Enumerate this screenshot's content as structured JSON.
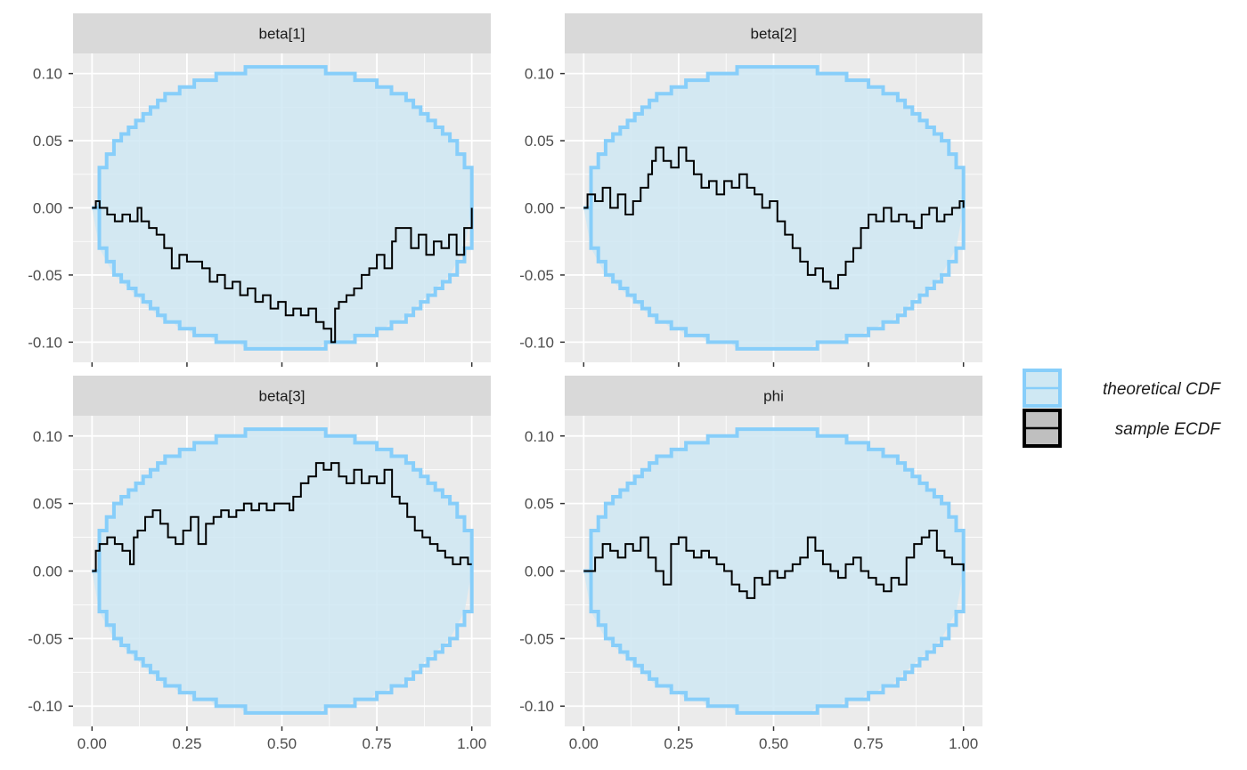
{
  "colors": {
    "panel_bg": "#ebebeb",
    "strip_bg": "#d9d9d9",
    "grid_major": "#ffffff",
    "band_fill": "#cfe8f3",
    "band_stroke": "#87cefa",
    "ecdf_line": "#000000"
  },
  "chart_data": {
    "type": "line",
    "layout": "facet-2x2",
    "x_ticks": [
      "0.00",
      "0.25",
      "0.50",
      "0.75",
      "1.00"
    ],
    "y_ticks": [
      "-0.10",
      "-0.05",
      "0.00",
      "0.05",
      "0.10"
    ],
    "xlim": [
      -0.05,
      1.05
    ],
    "ylim": [
      -0.115,
      0.115
    ],
    "grid": true,
    "legend_position": "right",
    "legend": [
      {
        "label": "theoretical CDF",
        "color": "#87cefa",
        "kind": "band"
      },
      {
        "label": "sample ECDF",
        "color": "#000000",
        "kind": "line"
      }
    ],
    "band_halfwidth_max": 0.105,
    "facets": [
      {
        "title": "beta[1]",
        "x": [
          0.0,
          0.01,
          0.02,
          0.04,
          0.06,
          0.08,
          0.1,
          0.12,
          0.13,
          0.15,
          0.17,
          0.19,
          0.21,
          0.23,
          0.25,
          0.27,
          0.29,
          0.31,
          0.33,
          0.35,
          0.37,
          0.39,
          0.41,
          0.43,
          0.45,
          0.47,
          0.49,
          0.51,
          0.53,
          0.55,
          0.57,
          0.59,
          0.61,
          0.63,
          0.64,
          0.65,
          0.67,
          0.69,
          0.71,
          0.73,
          0.75,
          0.77,
          0.79,
          0.8,
          0.82,
          0.84,
          0.86,
          0.88,
          0.9,
          0.92,
          0.94,
          0.96,
          0.98,
          1.0
        ],
        "y": [
          0.0,
          0.005,
          0.0,
          -0.005,
          -0.01,
          -0.005,
          -0.01,
          0.0,
          -0.01,
          -0.015,
          -0.02,
          -0.03,
          -0.045,
          -0.035,
          -0.04,
          -0.04,
          -0.045,
          -0.055,
          -0.05,
          -0.06,
          -0.055,
          -0.065,
          -0.06,
          -0.07,
          -0.065,
          -0.075,
          -0.07,
          -0.08,
          -0.075,
          -0.08,
          -0.075,
          -0.085,
          -0.09,
          -0.1,
          -0.075,
          -0.07,
          -0.065,
          -0.06,
          -0.05,
          -0.045,
          -0.035,
          -0.045,
          -0.025,
          -0.015,
          -0.015,
          -0.03,
          -0.02,
          -0.035,
          -0.025,
          -0.03,
          -0.02,
          -0.035,
          -0.015,
          0.0
        ]
      },
      {
        "title": "beta[2]",
        "x": [
          0.0,
          0.01,
          0.03,
          0.05,
          0.07,
          0.09,
          0.11,
          0.13,
          0.15,
          0.17,
          0.18,
          0.19,
          0.21,
          0.23,
          0.25,
          0.27,
          0.29,
          0.31,
          0.33,
          0.35,
          0.37,
          0.39,
          0.41,
          0.43,
          0.45,
          0.47,
          0.49,
          0.51,
          0.53,
          0.55,
          0.57,
          0.59,
          0.61,
          0.63,
          0.65,
          0.66,
          0.67,
          0.69,
          0.71,
          0.73,
          0.75,
          0.77,
          0.79,
          0.81,
          0.83,
          0.85,
          0.87,
          0.89,
          0.91,
          0.93,
          0.95,
          0.97,
          0.99,
          1.0
        ],
        "y": [
          0.0,
          0.01,
          0.005,
          0.015,
          0.0,
          0.01,
          -0.005,
          0.005,
          0.015,
          0.025,
          0.035,
          0.045,
          0.035,
          0.03,
          0.045,
          0.035,
          0.025,
          0.015,
          0.02,
          0.01,
          0.02,
          0.015,
          0.025,
          0.015,
          0.01,
          0.0,
          0.005,
          -0.01,
          -0.02,
          -0.03,
          -0.04,
          -0.05,
          -0.045,
          -0.055,
          -0.06,
          -0.06,
          -0.05,
          -0.04,
          -0.03,
          -0.015,
          -0.005,
          -0.01,
          0.0,
          -0.01,
          -0.005,
          -0.01,
          -0.015,
          -0.005,
          0.0,
          -0.01,
          -0.005,
          0.0,
          0.005,
          0.0
        ]
      },
      {
        "title": "beta[3]",
        "x": [
          0.0,
          0.01,
          0.02,
          0.04,
          0.06,
          0.08,
          0.1,
          0.11,
          0.12,
          0.14,
          0.16,
          0.18,
          0.2,
          0.22,
          0.24,
          0.26,
          0.28,
          0.3,
          0.32,
          0.34,
          0.36,
          0.38,
          0.4,
          0.42,
          0.44,
          0.46,
          0.48,
          0.5,
          0.52,
          0.53,
          0.55,
          0.57,
          0.59,
          0.61,
          0.63,
          0.65,
          0.67,
          0.69,
          0.71,
          0.73,
          0.75,
          0.77,
          0.79,
          0.81,
          0.83,
          0.85,
          0.87,
          0.89,
          0.91,
          0.93,
          0.95,
          0.97,
          0.99,
          1.0
        ],
        "y": [
          0.0,
          0.015,
          0.02,
          0.025,
          0.02,
          0.015,
          0.005,
          0.025,
          0.03,
          0.04,
          0.045,
          0.035,
          0.025,
          0.02,
          0.03,
          0.04,
          0.02,
          0.035,
          0.04,
          0.045,
          0.04,
          0.045,
          0.05,
          0.045,
          0.05,
          0.045,
          0.05,
          0.05,
          0.045,
          0.055,
          0.065,
          0.07,
          0.08,
          0.075,
          0.08,
          0.07,
          0.065,
          0.075,
          0.065,
          0.07,
          0.065,
          0.075,
          0.055,
          0.05,
          0.04,
          0.03,
          0.025,
          0.02,
          0.015,
          0.01,
          0.005,
          0.01,
          0.005,
          0.005
        ]
      },
      {
        "title": "phi",
        "x": [
          0.0,
          0.01,
          0.03,
          0.05,
          0.07,
          0.09,
          0.11,
          0.13,
          0.15,
          0.17,
          0.19,
          0.21,
          0.23,
          0.25,
          0.27,
          0.29,
          0.31,
          0.33,
          0.35,
          0.37,
          0.39,
          0.41,
          0.43,
          0.45,
          0.47,
          0.49,
          0.51,
          0.53,
          0.55,
          0.57,
          0.59,
          0.61,
          0.63,
          0.65,
          0.67,
          0.69,
          0.71,
          0.73,
          0.75,
          0.77,
          0.79,
          0.81,
          0.83,
          0.85,
          0.87,
          0.89,
          0.91,
          0.93,
          0.95,
          0.97,
          0.99,
          1.0
        ],
        "y": [
          0.0,
          0.0,
          0.01,
          0.02,
          0.015,
          0.01,
          0.02,
          0.015,
          0.025,
          0.01,
          0.0,
          -0.01,
          0.02,
          0.025,
          0.015,
          0.01,
          0.015,
          0.01,
          0.005,
          0.0,
          -0.01,
          -0.015,
          -0.02,
          -0.005,
          -0.01,
          0.0,
          -0.005,
          0.0,
          0.005,
          0.01,
          0.025,
          0.015,
          0.005,
          0.0,
          -0.005,
          0.005,
          0.01,
          0.0,
          -0.005,
          -0.01,
          -0.015,
          -0.005,
          -0.01,
          0.01,
          0.02,
          0.025,
          0.03,
          0.015,
          0.01,
          0.005,
          0.005,
          0.0
        ]
      }
    ]
  }
}
